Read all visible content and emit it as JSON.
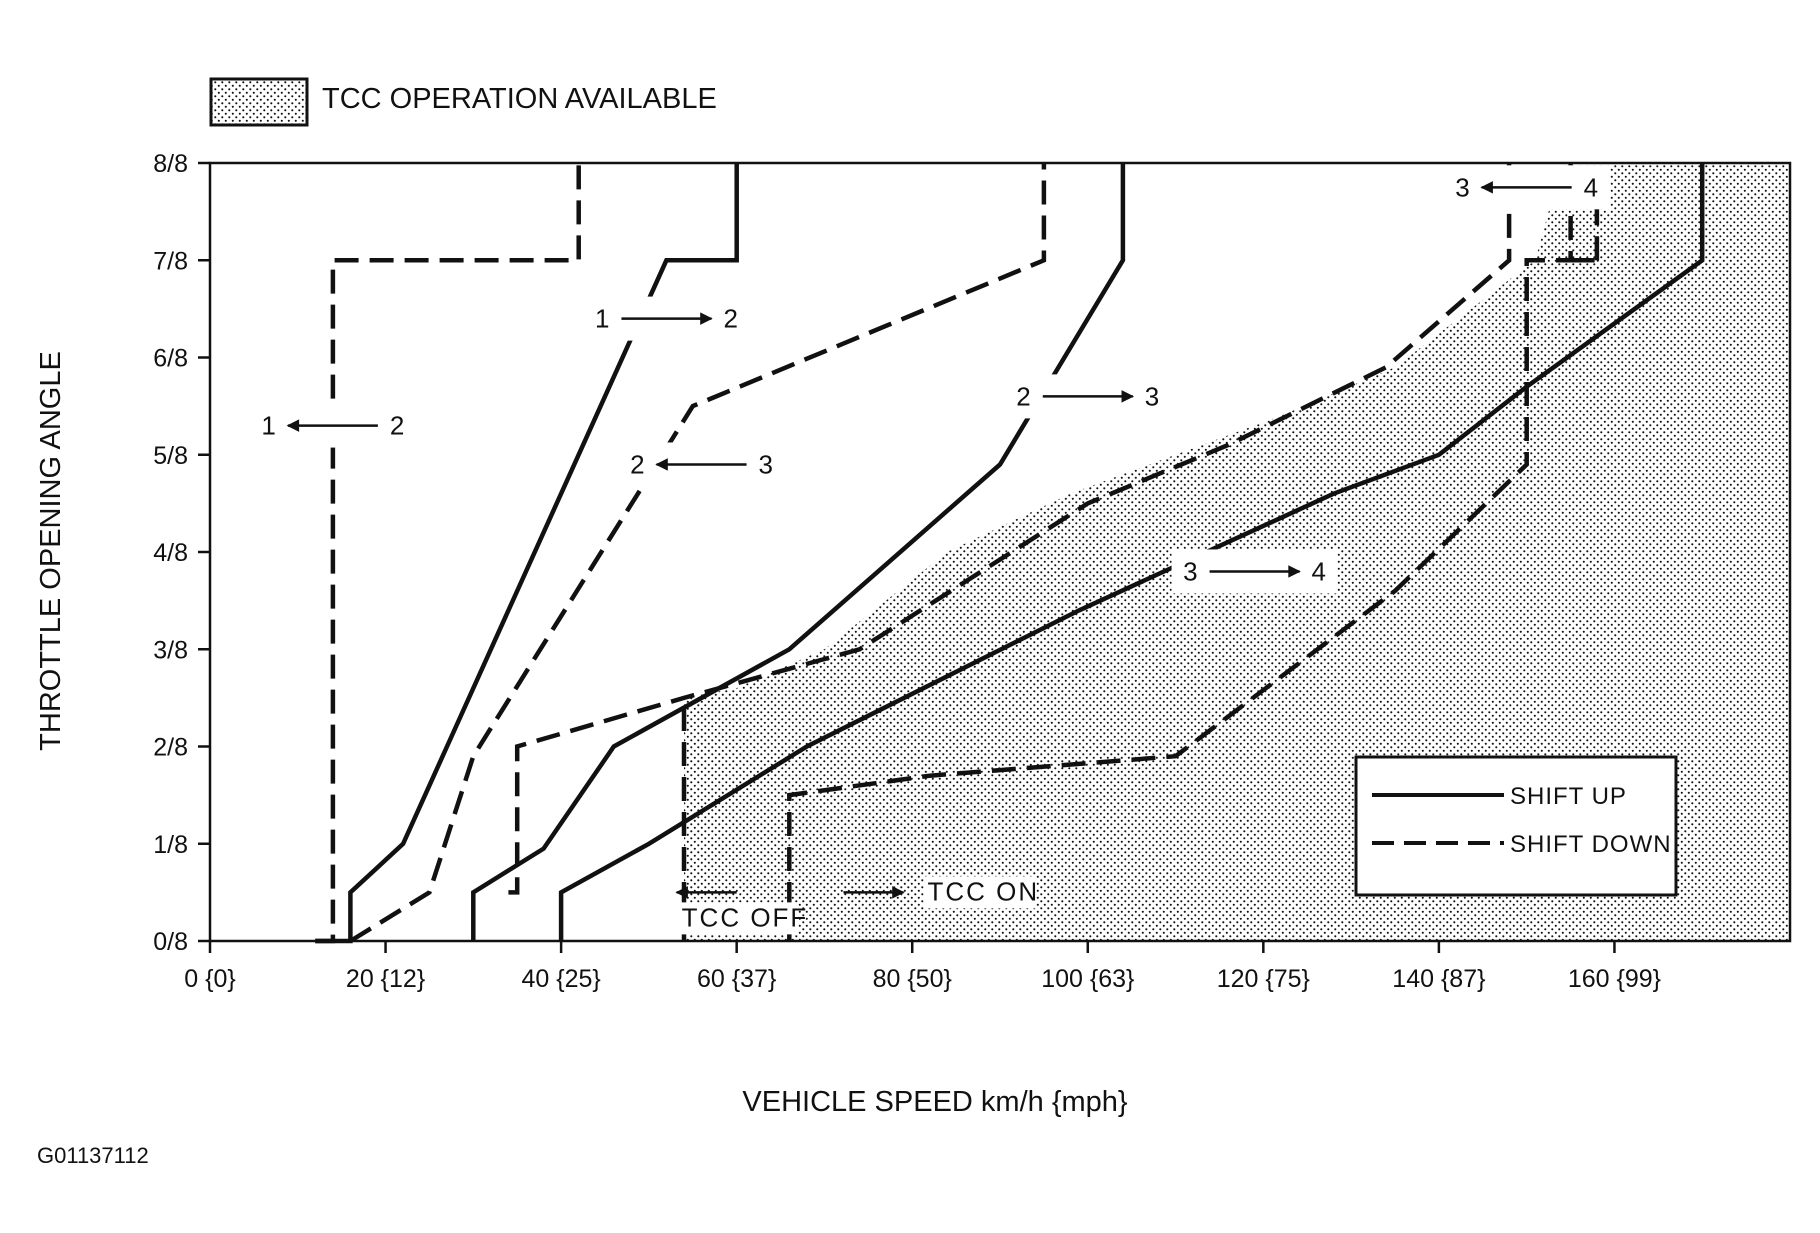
{
  "chart_data": {
    "type": "line",
    "xlabel": "VEHICLE SPEED  km/h {mph}",
    "ylabel": "THROTTLE OPENING ANGLE",
    "xlim": [
      0,
      180
    ],
    "ylim": [
      0,
      8
    ],
    "x_ticks": [
      {
        "value": 0,
        "label": "0 {0}"
      },
      {
        "value": 20,
        "label": "20 {12}"
      },
      {
        "value": 40,
        "label": "40 {25}"
      },
      {
        "value": 60,
        "label": "60 {37}"
      },
      {
        "value": 80,
        "label": "80 {50}"
      },
      {
        "value": 100,
        "label": "100 {63}"
      },
      {
        "value": 120,
        "label": "120 {75}"
      },
      {
        "value": 140,
        "label": "140 {87}"
      },
      {
        "value": 160,
        "label": "160 {99}"
      }
    ],
    "y_ticks": [
      {
        "value": 0,
        "label": "0/8"
      },
      {
        "value": 1,
        "label": "1/8"
      },
      {
        "value": 2,
        "label": "2/8"
      },
      {
        "value": 3,
        "label": "3/8"
      },
      {
        "value": 4,
        "label": "4/8"
      },
      {
        "value": 5,
        "label": "5/8"
      },
      {
        "value": 6,
        "label": "6/8"
      },
      {
        "value": 7,
        "label": "7/8"
      },
      {
        "value": 8,
        "label": "8/8"
      }
    ],
    "grid": false,
    "legend_position": "lower-right",
    "legend": [
      {
        "style": "solid",
        "label": "SHIFT UP"
      },
      {
        "style": "dashed",
        "label": "SHIFT DOWN"
      }
    ],
    "tcc_region_label": "TCC OPERATION AVAILABLE",
    "tcc_region": [
      [
        54,
        0
      ],
      [
        54,
        2.5
      ],
      [
        60,
        2.6
      ],
      [
        70,
        3.0
      ],
      [
        84,
        4.0
      ],
      [
        98,
        4.6
      ],
      [
        110,
        5.0
      ],
      [
        122,
        5.4
      ],
      [
        135,
        5.9
      ],
      [
        148,
        6.8
      ],
      [
        151,
        7.0
      ],
      [
        154,
        8.0
      ],
      [
        180,
        8.0
      ],
      [
        180,
        0
      ]
    ],
    "series": [
      {
        "style": "solid",
        "points": [
          [
            12,
            0
          ],
          [
            16,
            0
          ],
          [
            16,
            0.5
          ],
          [
            22,
            1.0
          ],
          [
            27,
            2.0
          ],
          [
            52,
            7.0
          ],
          [
            60,
            7.0
          ],
          [
            60,
            8.0
          ]
        ]
      },
      {
        "style": "dashed",
        "points": [
          [
            12,
            0
          ],
          [
            14,
            0
          ],
          [
            14,
            7.0
          ],
          [
            42,
            7.0
          ],
          [
            42,
            8.0
          ]
        ]
      },
      {
        "style": "dashed",
        "points": [
          [
            16,
            0
          ],
          [
            25,
            0.5
          ],
          [
            30,
            1.9
          ],
          [
            55,
            5.5
          ],
          [
            95,
            7.0
          ],
          [
            95,
            8.0
          ]
        ]
      },
      {
        "style": "solid",
        "points": [
          [
            30,
            0
          ],
          [
            30,
            0.5
          ],
          [
            38,
            0.95
          ],
          [
            46,
            2.0
          ],
          [
            66,
            3.0
          ],
          [
            90,
            4.9
          ],
          [
            104,
            7.0
          ],
          [
            104,
            8.0
          ]
        ]
      },
      {
        "style": "dashed",
        "points": [
          [
            34,
            0.5
          ],
          [
            35,
            0.5
          ],
          [
            35,
            2.0
          ],
          [
            54,
            2.5
          ],
          [
            74,
            3.0
          ],
          [
            100,
            4.5
          ],
          [
            116,
            5.1
          ],
          [
            134,
            5.9
          ],
          [
            148,
            7.0
          ],
          [
            148,
            8.0
          ]
        ]
      },
      {
        "style": "solid",
        "points": [
          [
            40,
            0
          ],
          [
            40,
            0.5
          ],
          [
            50,
            1.0
          ],
          [
            68,
            2.0
          ],
          [
            99,
            3.4
          ],
          [
            128,
            4.6
          ],
          [
            140,
            5.0
          ],
          [
            150,
            5.7
          ],
          [
            170,
            7.0
          ],
          [
            170,
            8.0
          ]
        ]
      },
      {
        "style": "dashed",
        "points": [
          [
            66,
            0
          ],
          [
            66,
            1.5
          ],
          [
            82,
            1.7
          ],
          [
            110,
            1.9
          ],
          [
            135,
            3.6
          ],
          [
            150,
            4.9
          ],
          [
            150,
            7.0
          ],
          [
            155,
            7.0
          ],
          [
            155,
            8.0
          ]
        ]
      },
      {
        "style": "dashed",
        "points": [
          [
            54,
            0
          ],
          [
            54,
            2.5
          ]
        ]
      },
      {
        "style": "dashed",
        "points": [
          [
            158,
            7.0
          ],
          [
            158,
            8.0
          ]
        ]
      },
      {
        "style": "dashed",
        "points": [
          [
            155,
            7.0
          ],
          [
            158,
            7.0
          ]
        ]
      }
    ],
    "annotations": [
      {
        "x": 14,
        "y": 5.3,
        "from": "2",
        "to": "1"
      },
      {
        "x": 52,
        "y": 6.4,
        "from": "1",
        "to": "2"
      },
      {
        "x": 56,
        "y": 4.9,
        "from": "3",
        "to": "2"
      },
      {
        "x": 100,
        "y": 5.6,
        "from": "2",
        "to": "3"
      },
      {
        "x": 119,
        "y": 3.8,
        "from": "3",
        "to": "4"
      },
      {
        "x": 150,
        "y": 7.75,
        "from": "4",
        "to": "3"
      },
      {
        "x": 60,
        "y": 0.5,
        "label": "TCC OFF"
      },
      {
        "x": 79,
        "y": 0.5,
        "label": "TCC ON"
      }
    ]
  },
  "figure_id": "G01137112"
}
